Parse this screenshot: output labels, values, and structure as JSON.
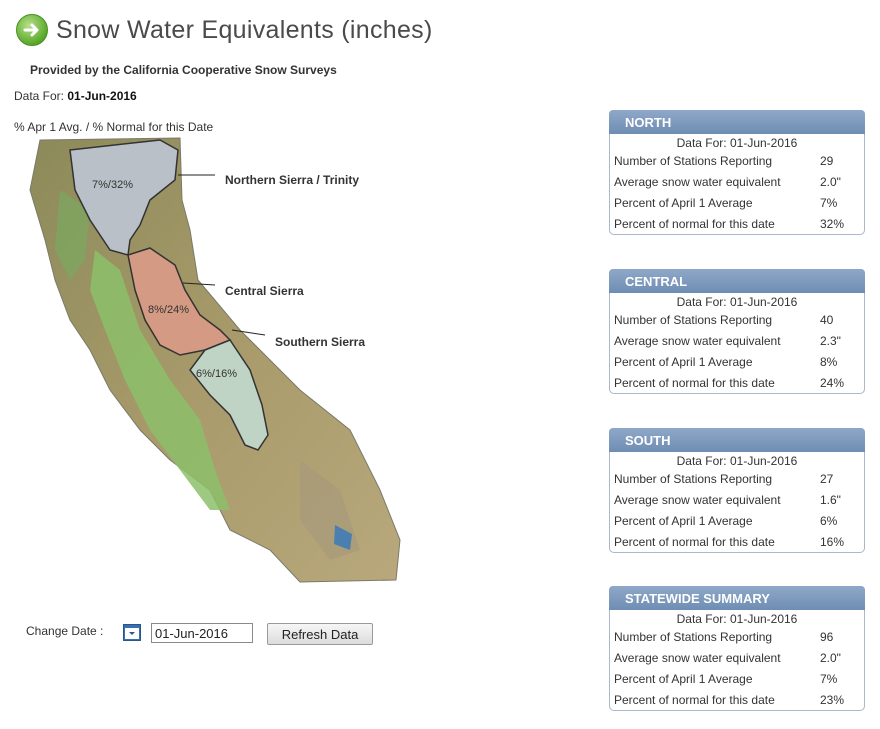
{
  "header": {
    "title": "Snow Water Equivalents (inches)",
    "provided_by": "Provided by the California Cooperative Snow Surveys",
    "data_for_label": "Data For:",
    "data_for_date": "01-Jun-2016",
    "legend_text": "% Apr 1 Avg. / % Normal for this Date"
  },
  "map": {
    "regions": [
      {
        "name": "Northern Sierra / Trinity",
        "pct": "7%/32%"
      },
      {
        "name": "Central Sierra",
        "pct": "8%/24%"
      },
      {
        "name": "Southern Sierra",
        "pct": "6%/16%"
      }
    ]
  },
  "controls": {
    "change_date_label": "Change Date :",
    "date_value": "01-Jun-2016",
    "refresh_label": "Refresh Data"
  },
  "row_labels": {
    "stations": "Number of Stations Reporting",
    "avg_swe": "Average snow water equivalent",
    "pct_apr1": "Percent of April 1 Average",
    "pct_normal": "Percent of normal for this date"
  },
  "panels": [
    {
      "title": "NORTH",
      "date_line": "Data For: 01-Jun-2016",
      "stations": "29",
      "avg_swe": "2.0\"",
      "pct_apr1": "7%",
      "pct_normal": "32%"
    },
    {
      "title": "CENTRAL",
      "date_line": "Data For: 01-Jun-2016",
      "stations": "40",
      "avg_swe": "2.3\"",
      "pct_apr1": "8%",
      "pct_normal": "24%"
    },
    {
      "title": "SOUTH",
      "date_line": "Data For: 01-Jun-2016",
      "stations": "27",
      "avg_swe": "1.6\"",
      "pct_apr1": "6%",
      "pct_normal": "16%"
    },
    {
      "title": "STATEWIDE SUMMARY",
      "date_line": "Data For: 01-Jun-2016",
      "stations": "96",
      "avg_swe": "2.0\"",
      "pct_apr1": "7%",
      "pct_normal": "23%"
    }
  ],
  "colors": {
    "panel_header": "#7896bc",
    "north_region": "#b9c0c8",
    "central_region": "#d49a84",
    "south_region": "#bfd4c4"
  },
  "icons": {
    "title": "arrow-right-circle-icon",
    "date_picker": "calendar-icon"
  }
}
